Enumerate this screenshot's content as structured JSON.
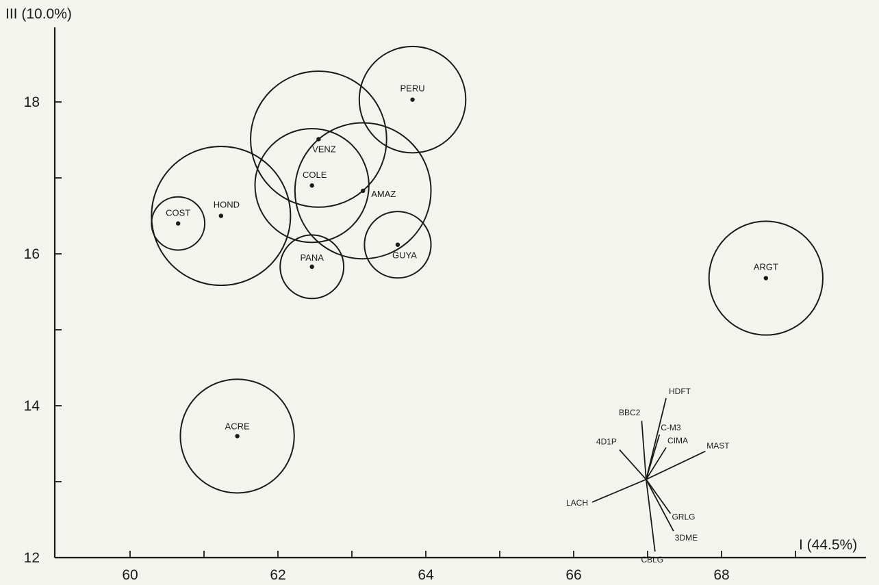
{
  "chart_data": {
    "type": "scatter",
    "xlabel": "I (44.5%)",
    "ylabel": "III (10.0%)",
    "xlim": [
      59.0,
      69.5
    ],
    "ylim": [
      12.0,
      19.0
    ],
    "x_ticks": [
      60,
      61,
      62,
      63,
      64,
      65,
      66,
      67,
      68,
      69
    ],
    "x_tick_labels": [
      "60",
      "",
      "62",
      "",
      "64",
      "",
      "66",
      "",
      "68",
      ""
    ],
    "y_ticks": [
      12,
      13,
      14,
      15,
      16,
      17,
      18
    ],
    "y_tick_labels": [
      "12",
      "",
      "14",
      "",
      "16",
      "",
      "18"
    ],
    "grid": false,
    "points": [
      {
        "label": "PERU",
        "x": 63.82,
        "y": 18.03,
        "radius": 0.72
      },
      {
        "label": "VENZ",
        "x": 62.55,
        "y": 17.51,
        "radius": 0.92
      },
      {
        "label": "COLE",
        "x": 62.46,
        "y": 16.9,
        "radius": 0.77
      },
      {
        "label": "AMAZ",
        "x": 63.15,
        "y": 16.83,
        "radius": 0.92
      },
      {
        "label": "HOND",
        "x": 61.23,
        "y": 16.5,
        "radius": 0.94
      },
      {
        "label": "COST",
        "x": 60.65,
        "y": 16.4,
        "radius": 0.36
      },
      {
        "label": "GUYA",
        "x": 63.62,
        "y": 16.12,
        "radius": 0.45
      },
      {
        "label": "PANA",
        "x": 62.46,
        "y": 15.83,
        "radius": 0.43
      },
      {
        "label": "ARGT",
        "x": 68.6,
        "y": 15.68,
        "radius": 0.77
      },
      {
        "label": "ACRE",
        "x": 61.45,
        "y": 13.6,
        "radius": 0.77
      }
    ],
    "vector_origin": {
      "x": 66.98,
      "y": 13.03
    },
    "vectors": [
      {
        "label": "HDFT",
        "x": 67.25,
        "y": 14.1
      },
      {
        "label": "BBC2",
        "x": 66.92,
        "y": 13.8
      },
      {
        "label": "C-M3",
        "x": 67.16,
        "y": 13.62
      },
      {
        "label": "CIMA",
        "x": 67.25,
        "y": 13.45
      },
      {
        "label": "MAST",
        "x": 67.78,
        "y": 13.4
      },
      {
        "label": "4D1P",
        "x": 66.62,
        "y": 13.42
      },
      {
        "label": "LACH",
        "x": 66.25,
        "y": 12.73
      },
      {
        "label": "GRLG",
        "x": 67.31,
        "y": 12.58
      },
      {
        "label": "3DME",
        "x": 67.35,
        "y": 12.35
      },
      {
        "label": "CBLG",
        "x": 67.1,
        "y": 12.08
      }
    ]
  }
}
